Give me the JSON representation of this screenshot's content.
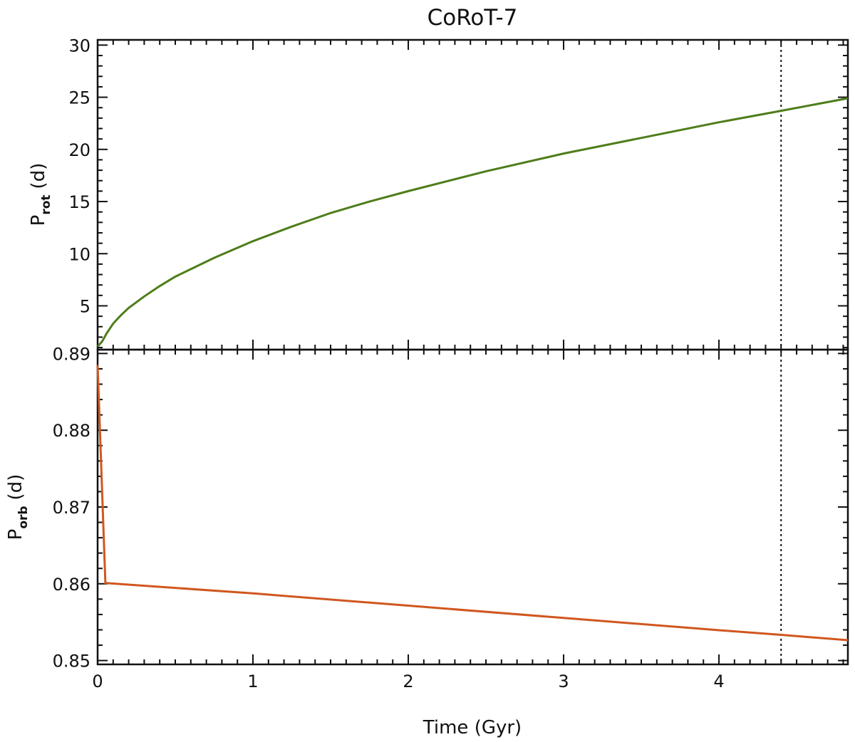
{
  "title": "CoRoT-7",
  "colors": {
    "rotation_curve": "#4e7d1a",
    "orbit_curve": "#d0571f",
    "axes": "#111111"
  },
  "chart_data": [
    {
      "type": "line",
      "panel": "top",
      "ylabel": {
        "main": "P",
        "sub": "rot",
        "unit": "(d)"
      },
      "xlim": [
        0,
        4.83
      ],
      "ylim": [
        0.8,
        30.5
      ],
      "yticks": [
        5,
        10,
        15,
        20,
        25,
        30
      ],
      "ytick_labels": [
        "5",
        "10",
        "15",
        "20",
        "25",
        "30"
      ],
      "grid": false,
      "series": [
        {
          "x": [
            0,
            0.03,
            0.06,
            0.1,
            0.15,
            0.2,
            0.3,
            0.4,
            0.5,
            0.75,
            1.0,
            1.25,
            1.5,
            1.75,
            2.0,
            2.5,
            3.0,
            3.5,
            4.0,
            4.4,
            4.83
          ],
          "y": [
            1.1,
            1.6,
            2.4,
            3.3,
            4.1,
            4.8,
            5.9,
            6.9,
            7.8,
            9.6,
            11.2,
            12.6,
            13.9,
            15.0,
            16.0,
            17.9,
            19.6,
            21.1,
            22.6,
            23.7,
            24.9
          ]
        }
      ],
      "reference_line": {
        "x": 4.4,
        "style": "dotted"
      }
    },
    {
      "type": "line",
      "panel": "bottom",
      "xlabel": "Time (Gyr)",
      "ylabel": {
        "main": "P",
        "sub": "orb",
        "unit": "(d)"
      },
      "xlim": [
        0,
        4.83
      ],
      "ylim": [
        0.8495,
        0.8905
      ],
      "xticks": [
        0,
        1,
        2,
        3,
        4
      ],
      "xtick_labels": [
        "0",
        "1",
        "2",
        "3",
        "4"
      ],
      "yticks": [
        0.85,
        0.86,
        0.87,
        0.88,
        0.89
      ],
      "ytick_labels": [
        "0.85",
        "0.86",
        "0.87",
        "0.88",
        "0.89"
      ],
      "grid": false,
      "series": [
        {
          "x": [
            0,
            0.05,
            1.0,
            2.0,
            3.0,
            4.0,
            4.4,
            4.83
          ],
          "y": [
            0.8885,
            0.8601,
            0.85875,
            0.85715,
            0.85555,
            0.85395,
            0.85335,
            0.85265
          ]
        }
      ],
      "reference_line": {
        "x": 4.4,
        "style": "dotted"
      }
    }
  ]
}
